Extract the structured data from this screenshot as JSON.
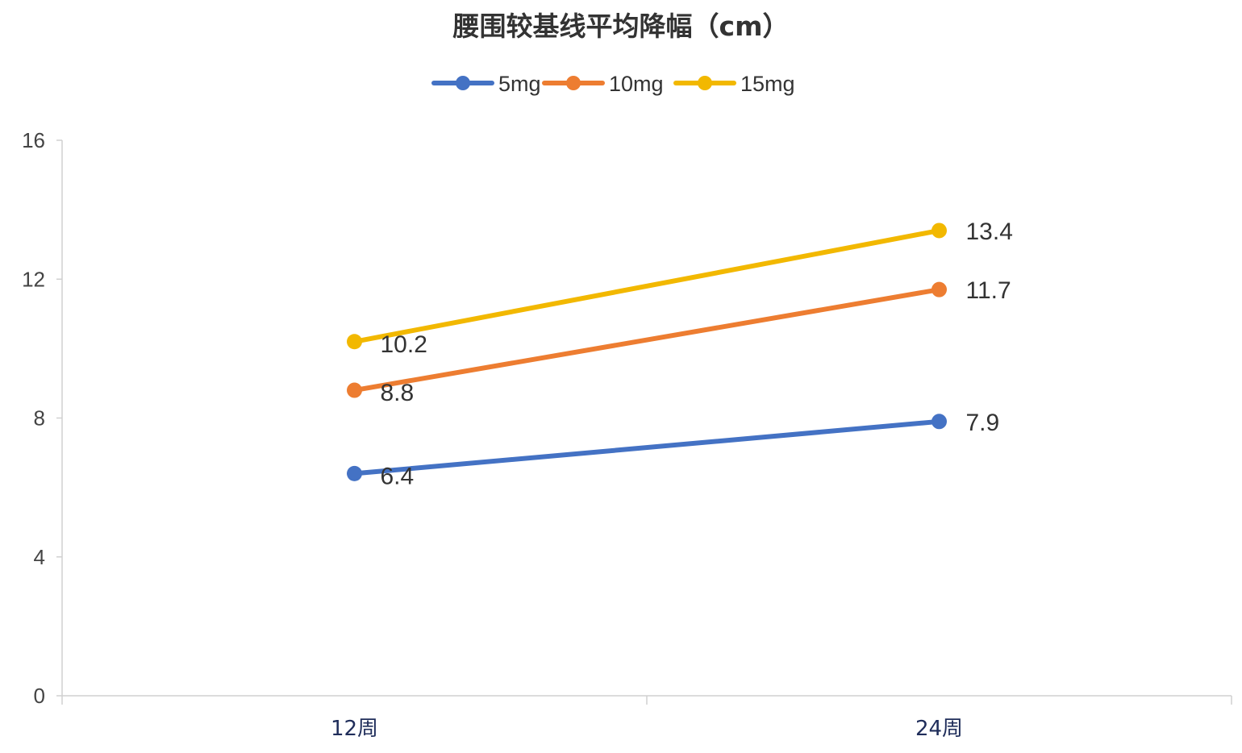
{
  "chart_data": {
    "type": "line",
    "title": "腰围较基线平均降幅（cm）",
    "xlabel": "",
    "ylabel": "",
    "categories": [
      "12周",
      "24周"
    ],
    "ylim": [
      0,
      16
    ],
    "yticks": [
      0,
      4,
      8,
      12,
      16
    ],
    "grid": false,
    "legend_position": "top-center",
    "series": [
      {
        "name": "5mg",
        "color": "#4472c4",
        "values": [
          6.4,
          7.9
        ],
        "labels": [
          "6.4",
          "7.9"
        ]
      },
      {
        "name": "10mg",
        "color": "#ed7d31",
        "values": [
          8.8,
          11.7
        ],
        "labels": [
          "8.8",
          "11.7"
        ]
      },
      {
        "name": "15mg",
        "color": "#f2b800",
        "values": [
          10.2,
          13.4
        ],
        "labels": [
          "10.2",
          "13.4"
        ]
      }
    ]
  }
}
